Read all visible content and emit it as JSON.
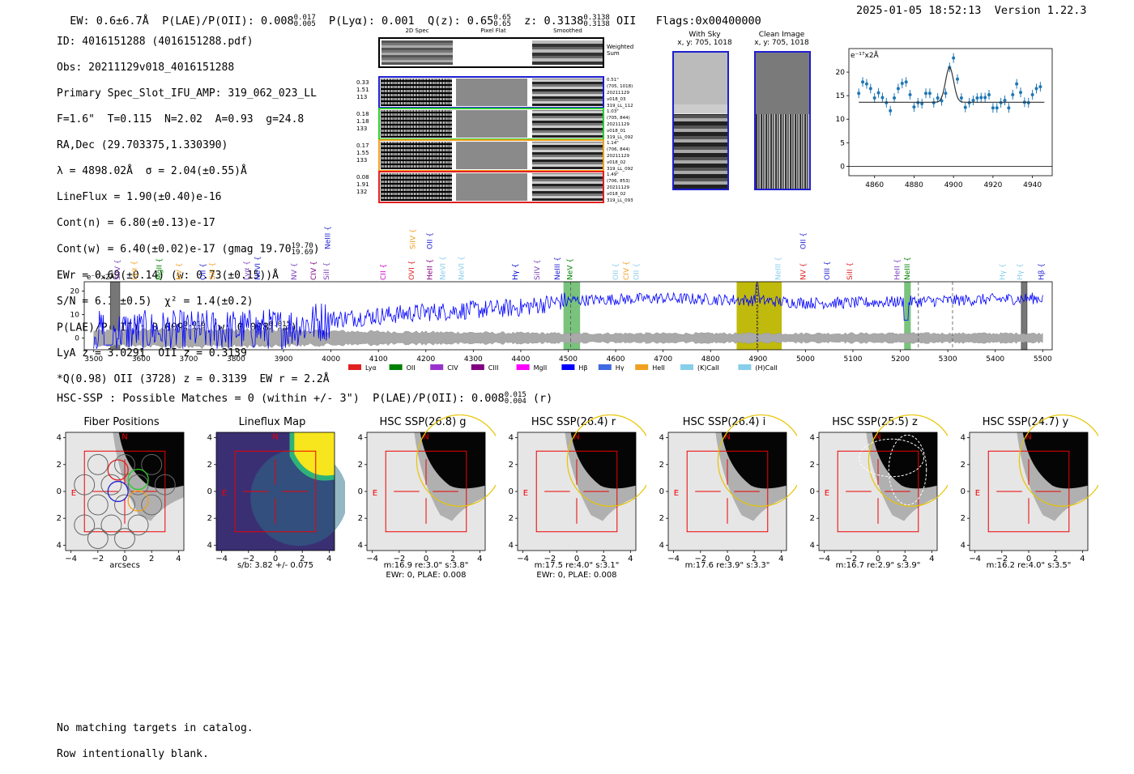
{
  "header": {
    "ew_text": "EW: 0.6±6.7Å",
    "plae_text": "P(LAE)/P(OII): 0.008",
    "plae_hi": "0.017",
    "plae_lo": "0.005",
    "plya_text": "P(Lyα): 0.001",
    "q_text": "Q(z): 0.65",
    "q_hi": "0.65",
    "q_lo": "0.65",
    "z_text": "z: 0.3138",
    "z_hi": "0.3138",
    "z_lo": "0.3138",
    "z_line": "OII",
    "flags": "Flags:0x00400000",
    "datetime": "2025-01-05 18:52:13",
    "version": "Version 1.22.3"
  },
  "info": {
    "l1": "ID: 4016151288 (4016151288.pdf)",
    "l2": "Obs: 20211129v018_4016151288",
    "l3": "Primary Spec_Slot_IFU_AMP: 319_062_023_LL",
    "l4": "F=1.6\"  T=0.115  N=2.02  A=0.93  g=24.8",
    "l5": "RA,Dec (29.703375,1.330390)",
    "l6": "λ = 4898.02Å  σ = 2.04(±0.55)Å",
    "l7": "LineFlux = 1.90(±0.40)e-16",
    "l8": "Cont(n) = 6.80(±0.13)e-17",
    "l9": "Cont(w) = 6.40(±0.02)e-17 (gmag 19.70",
    "l9_hi": "19.70",
    "l9_lo": "19.69",
    "l9_end": ")",
    "l10": "EWr = 0.69(±0.14) (w: 0.73(±0.15))Å",
    "l11": "S/N = 6.1(±0.5)  χ² = 1.4(±0.2)",
    "l12": "P(LAE)/P(OII): 0.009",
    "l12_hi": "0.016",
    "l12_lo": "0.005",
    "l12_mid": "(w: 0.008",
    "l12_hi2": "0.015",
    "l12_lo2": "0.005",
    "l12_end": ")",
    "l13": "LyA z = 3.0291  OII z = 0.3139",
    "l14": "*Q(0.98) OII (3728) z = 0.3139  EW r = 2.2Å"
  },
  "cutouts": {
    "col1": "2D Spec",
    "col2": "Pixel Flat",
    "col3": "Smoothed",
    "weighted": "Weighted\nSum",
    "rows": [
      {
        "left": [
          "0.33",
          "1.51",
          "113"
        ],
        "right": [
          "0.51\"",
          "(705, 1018)",
          "20211129",
          "v018_03",
          "319_LL_112"
        ],
        "color": "#1f1fd0"
      },
      {
        "left": [
          "0.18",
          "1.18",
          "133"
        ],
        "right": [
          "1.03\"",
          "(705, 844)",
          "20211129",
          "v018_01",
          "319_LL_092"
        ],
        "color": "#2ecc2e"
      },
      {
        "left": [
          "0.17",
          "1.55",
          "133"
        ],
        "right": [
          "1.14\"",
          "(706, 844)",
          "20211129",
          "v018_02",
          "319_LL_092"
        ],
        "color": "#f0a020"
      },
      {
        "left": [
          "0.08",
          "1.91",
          "132"
        ],
        "right": [
          "1.49\"",
          "(706, 853)",
          "20211129",
          "v018_02",
          "319_LL_093"
        ],
        "color": "#e02020"
      }
    ]
  },
  "sky": {
    "with_sky": "With Sky",
    "with_sky_xy": "x, y: 705, 1018",
    "clean": "Clean Image",
    "clean_xy": "x, y: 705, 1018"
  },
  "zoom_chart": {
    "ylabel": "e⁻¹⁷x2Å",
    "xticks": [
      "4860",
      "4880",
      "4900",
      "4920",
      "4940"
    ],
    "yticks": [
      "0",
      "5",
      "10",
      "15",
      "20"
    ]
  },
  "chart_data": [
    {
      "type": "scatter",
      "ylabel": "e⁻¹⁷x2Å",
      "xlim": [
        4847,
        4950
      ],
      "ylim": [
        -2,
        25
      ],
      "x": [
        4852,
        4854,
        4856,
        4858,
        4860,
        4862,
        4864,
        4866,
        4868,
        4870,
        4872,
        4874,
        4876,
        4878,
        4880,
        4882,
        4884,
        4886,
        4888,
        4890,
        4892,
        4894,
        4896,
        4898,
        4900,
        4902,
        4904,
        4906,
        4908,
        4910,
        4912,
        4914,
        4916,
        4918,
        4920,
        4922,
        4924,
        4926,
        4928,
        4930,
        4932,
        4934,
        4936,
        4938,
        4940,
        4942,
        4944
      ],
      "y": [
        15.5,
        17.9,
        17.5,
        16.5,
        14.5,
        15.6,
        14.6,
        13.5,
        11.8,
        14.5,
        16.5,
        17.6,
        17.9,
        15.2,
        12.6,
        13.5,
        13.3,
        15.5,
        15.5,
        13.5,
        14.5,
        13.9,
        15.5,
        21.0,
        23.0,
        18.5,
        14.5,
        12.5,
        13.5,
        14.0,
        14.5,
        14.6,
        14.6,
        15.2,
        12.4,
        12.4,
        13.5,
        14.0,
        12.4,
        15.2,
        17.5,
        15.7,
        13.6,
        13.5,
        15.2,
        16.5,
        16.9
      ],
      "model": {
        "center": 4898.02,
        "sigma": 2.04,
        "continuum": 13.6,
        "peak": 21.0
      }
    },
    {
      "type": "line",
      "ylabel": "e⁻¹⁷x2Å",
      "xlim": [
        3480,
        5520
      ],
      "ylim": [
        -5,
        24
      ],
      "xticks": [
        3500,
        3600,
        3700,
        3800,
        3900,
        4000,
        4100,
        4200,
        4300,
        4400,
        4500,
        4600,
        4700,
        4800,
        4900,
        5000,
        5100,
        5200,
        5300,
        5400,
        5500
      ],
      "yticks": [
        0,
        10,
        20
      ],
      "series": [
        {
          "color": "#0000ff",
          "trend": [
            [
              3500,
              3
            ],
            [
              3700,
              3
            ],
            [
              3900,
              4
            ],
            [
              4000,
              8
            ],
            [
              4200,
              11
            ],
            [
              4400,
              13
            ],
            [
              4500,
              16
            ],
            [
              4700,
              17
            ],
            [
              4900,
              16
            ],
            [
              5000,
              15
            ],
            [
              5100,
              15
            ],
            [
              5300,
              16
            ],
            [
              5500,
              17
            ]
          ]
        },
        {
          "color": "#999999",
          "band": [
            [
              3500,
              3
            ],
            [
              3700,
              4
            ],
            [
              4000,
              3
            ],
            [
              4500,
              2
            ],
            [
              5000,
              2
            ],
            [
              5500,
              2
            ]
          ]
        }
      ],
      "green_bands": [
        [
          4490,
          4525
        ],
        [
          5208,
          5222
        ]
      ],
      "yellow_band": [
        4855,
        4950
      ],
      "gray_hatched": [
        [
          3535,
          3555
        ],
        [
          5455,
          5467
        ]
      ],
      "dashed_lines": [
        4505,
        4900,
        5238,
        5310
      ],
      "dotted_line": 4898,
      "top_labels": [
        {
          "x": 3550,
          "label": "SiIV",
          "color": "#7b3fbf",
          "row": "low"
        },
        {
          "x": 3585,
          "label": "Lyα",
          "color": "#f0a020",
          "row": "low"
        },
        {
          "x": 3638,
          "label": "MgII",
          "color": "#008000",
          "row": "low"
        },
        {
          "x": 3680,
          "label": "NV",
          "color": "#f0a020",
          "row": "low"
        },
        {
          "x": 3730,
          "label": "OII",
          "color": "#1f1fd0",
          "row": "low"
        },
        {
          "x": 3750,
          "label": "SiII",
          "color": "#f0a020",
          "row": "low"
        },
        {
          "x": 3822,
          "label": "Lyα",
          "color": "#7b3fbf",
          "row": "low"
        },
        {
          "x": 3845,
          "label": "NeVI",
          "color": "#1f1fd0",
          "row": "low"
        },
        {
          "x": 3922,
          "label": "NV",
          "color": "#7b3fbf",
          "row": "low"
        },
        {
          "x": 3963,
          "label": "CIV",
          "color": "#800080",
          "row": "low"
        },
        {
          "x": 3990,
          "label": "SiII",
          "color": "#7b3fbf",
          "row": "low"
        },
        {
          "x": 3993,
          "label": "NeIII",
          "color": "#1f1fd0",
          "row": "high"
        },
        {
          "x": 4110,
          "label": "CII",
          "color": "#cc00cc",
          "row": "low"
        },
        {
          "x": 4170,
          "label": "OVI",
          "color": "#e02020",
          "row": "low"
        },
        {
          "x": 4172,
          "label": "SiIV",
          "color": "#f0a020",
          "row": "high"
        },
        {
          "x": 4208,
          "label": "HeII",
          "color": "#800080",
          "row": "low"
        },
        {
          "x": 4208,
          "label": "OII",
          "color": "#1f1fd0",
          "row": "high"
        },
        {
          "x": 4235,
          "label": "NeVI",
          "color": "#87ceeb",
          "row": "low"
        },
        {
          "x": 4275,
          "label": "NeVI",
          "color": "#87ceeb",
          "row": "low"
        },
        {
          "x": 4388,
          "label": "Hγ",
          "color": "#0000cc",
          "row": "low"
        },
        {
          "x": 4434,
          "label": "SiIV",
          "color": "#7b3fbf",
          "row": "low"
        },
        {
          "x": 4477,
          "label": "NeIII",
          "color": "#1f1fd0",
          "row": "low"
        },
        {
          "x": 4503,
          "label": "NeV",
          "color": "#008000",
          "row": "low"
        },
        {
          "x": 4600,
          "label": "OII",
          "color": "#87ceeb",
          "row": "low"
        },
        {
          "x": 4622,
          "label": "CIV",
          "color": "#f0a020",
          "row": "low"
        },
        {
          "x": 4643,
          "label": "OII",
          "color": "#87ceeb",
          "row": "low"
        },
        {
          "x": 4942,
          "label": "NeIII",
          "color": "#87ceeb",
          "row": "low"
        },
        {
          "x": 4995,
          "label": "NV",
          "color": "#e02020",
          "row": "low"
        },
        {
          "x": 4995,
          "label": "OII",
          "color": "#1f1fd0",
          "row": "high"
        },
        {
          "x": 5045,
          "label": "OIII",
          "color": "#1f1fd0",
          "row": "low"
        },
        {
          "x": 5093,
          "label": "SiII",
          "color": "#e02020",
          "row": "low"
        },
        {
          "x": 5193,
          "label": "HeII",
          "color": "#7b3fbf",
          "row": "low"
        },
        {
          "x": 5214,
          "label": "NeIII",
          "color": "#008000",
          "row": "low"
        },
        {
          "x": 5415,
          "label": "Hγ",
          "color": "#87ceeb",
          "row": "low"
        },
        {
          "x": 5452,
          "label": "Hγ",
          "color": "#87ceeb",
          "row": "low"
        },
        {
          "x": 5497,
          "label": "Hβ",
          "color": "#1f1fd0",
          "row": "low"
        }
      ]
    }
  ],
  "legend": [
    {
      "label": "Lyα",
      "color": "#e02020"
    },
    {
      "label": "OII",
      "color": "#008000"
    },
    {
      "label": "CIV",
      "color": "#9932cc"
    },
    {
      "label": "CIII",
      "color": "#800080"
    },
    {
      "label": "MgII",
      "color": "#ff00ff"
    },
    {
      "label": "Hβ",
      "color": "#0000ff"
    },
    {
      "label": "Hγ",
      "color": "#4169e1"
    },
    {
      "label": "HeII",
      "color": "#f0a020"
    },
    {
      "label": "(K)CaII",
      "color": "#87ceeb"
    },
    {
      "label": "(H)CaII",
      "color": "#87ceeb"
    }
  ],
  "hsc": {
    "line": "HSC-SSP : Possible Matches = 0 (within +/- 3\")  P(LAE)/P(OII): 0.008",
    "hi": "0.015",
    "lo": "0.004",
    "end": "(r)"
  },
  "panels": [
    {
      "title": "Fiber Positions",
      "sub1": "arcsecs",
      "sub2": ""
    },
    {
      "title": "Lineflux Map",
      "sub1": "s/b: 3.82 +/- 0.075",
      "sub2": ""
    },
    {
      "title": "HSC SSP(26.8) g",
      "sub1": "m:16.9  re:3.0\"  s:3.8\"",
      "sub2": "EWr: 0, PLAE: 0.008"
    },
    {
      "title": "HSC SSP(26.4) r",
      "sub1": "m:17.5  re:4.0\"  s:3.1\"",
      "sub2": "EWr: 0, PLAE: 0.008"
    },
    {
      "title": "HSC SSP(26.4) i",
      "sub1": "m:17.6  re:3.9\"  s:3.3\"",
      "sub2": ""
    },
    {
      "title": "HSC SSP(25.5) z",
      "sub1": "m:16.7  re:2.9\"  s:3.9\"",
      "sub2": ""
    },
    {
      "title": "HSC SSP(24.7) y",
      "sub1": "m:16.2  re:4.0\"  s:3.5\"",
      "sub2": ""
    }
  ],
  "panel_axis": {
    "ticks": [
      "−4",
      "−2",
      "0",
      "2",
      "4"
    ],
    "north": "N",
    "east": "E"
  },
  "footer": {
    "l1": "No matching targets in catalog.",
    "l2": "Row intentionally blank."
  }
}
